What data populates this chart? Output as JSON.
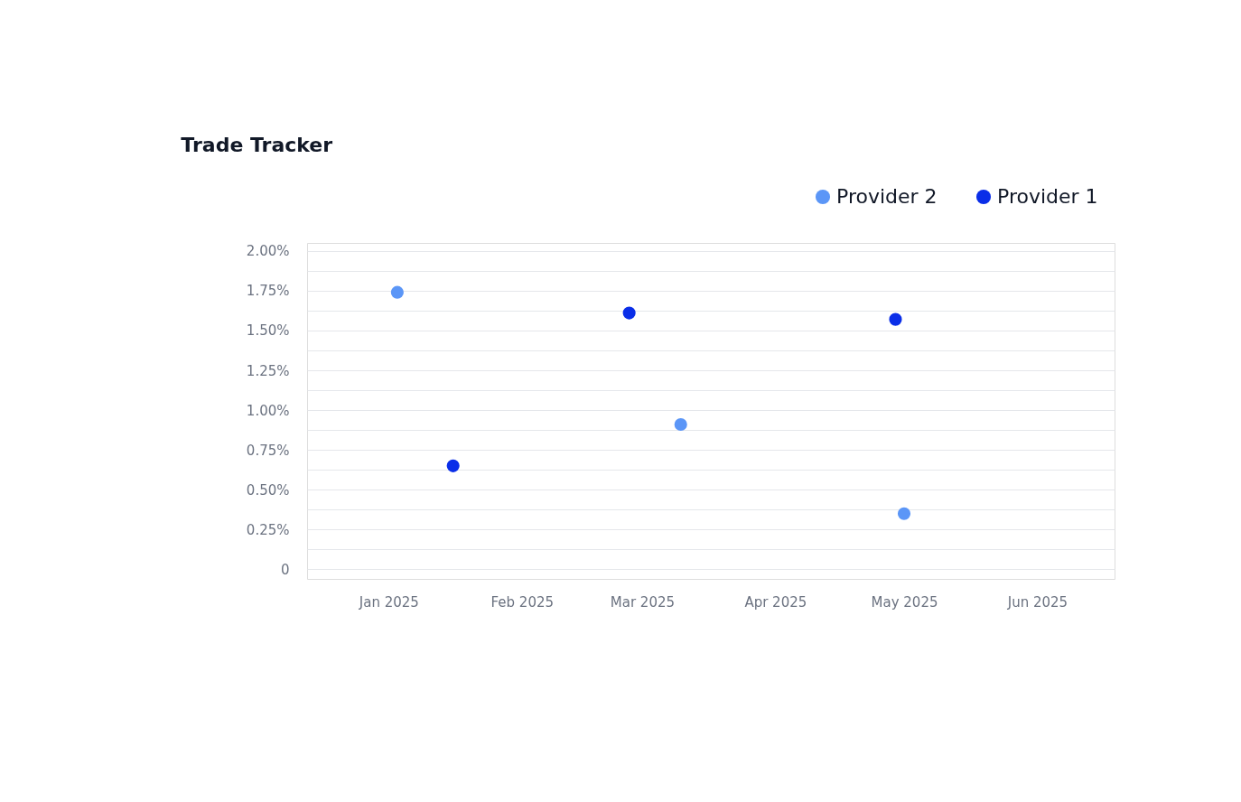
{
  "chart_data": {
    "type": "scatter",
    "title": "Trade Tracker",
    "series": [
      {
        "name": "Provider 2",
        "color": "#5b96f7",
        "x": [
          "2025-01-03",
          "2025-03-10",
          "2025-05-01"
        ],
        "values": [
          1.74,
          0.91,
          0.35
        ]
      },
      {
        "name": "Provider 1",
        "color": "#0a2ee8",
        "x": [
          "2025-01-16",
          "2025-02-26",
          "2025-04-29"
        ],
        "values": [
          0.65,
          1.61,
          1.57
        ]
      }
    ],
    "xlim": [
      "2024-12-13",
      "2025-06-19"
    ],
    "xticks": [
      {
        "value": "2025-01-01",
        "label": "Jan 2025"
      },
      {
        "value": "2025-02-01",
        "label": "Feb 2025"
      },
      {
        "value": "2025-03-01",
        "label": "Mar 2025"
      },
      {
        "value": "2025-04-01",
        "label": "Apr 2025"
      },
      {
        "value": "2025-05-01",
        "label": "May 2025"
      },
      {
        "value": "2025-06-01",
        "label": "Jun 2025"
      }
    ],
    "ylim": [
      -0.06,
      2.05
    ],
    "yticks": [
      {
        "value": 0,
        "label": "0"
      },
      {
        "value": 0.125,
        "label": null
      },
      {
        "value": 0.25,
        "label": "0.25%"
      },
      {
        "value": 0.375,
        "label": null
      },
      {
        "value": 0.5,
        "label": "0.50%"
      },
      {
        "value": 0.625,
        "label": null
      },
      {
        "value": 0.75,
        "label": "0.75%"
      },
      {
        "value": 0.875,
        "label": null
      },
      {
        "value": 1.0,
        "label": "1.00%"
      },
      {
        "value": 1.125,
        "label": null
      },
      {
        "value": 1.25,
        "label": "1.25%"
      },
      {
        "value": 1.375,
        "label": null
      },
      {
        "value": 1.5,
        "label": "1.50%"
      },
      {
        "value": 1.625,
        "label": null
      },
      {
        "value": 1.75,
        "label": "1.75%"
      },
      {
        "value": 1.875,
        "label": null
      },
      {
        "value": 2.0,
        "label": "2.00%"
      }
    ],
    "grid": "y",
    "legend": "top right",
    "marker": "circle"
  }
}
